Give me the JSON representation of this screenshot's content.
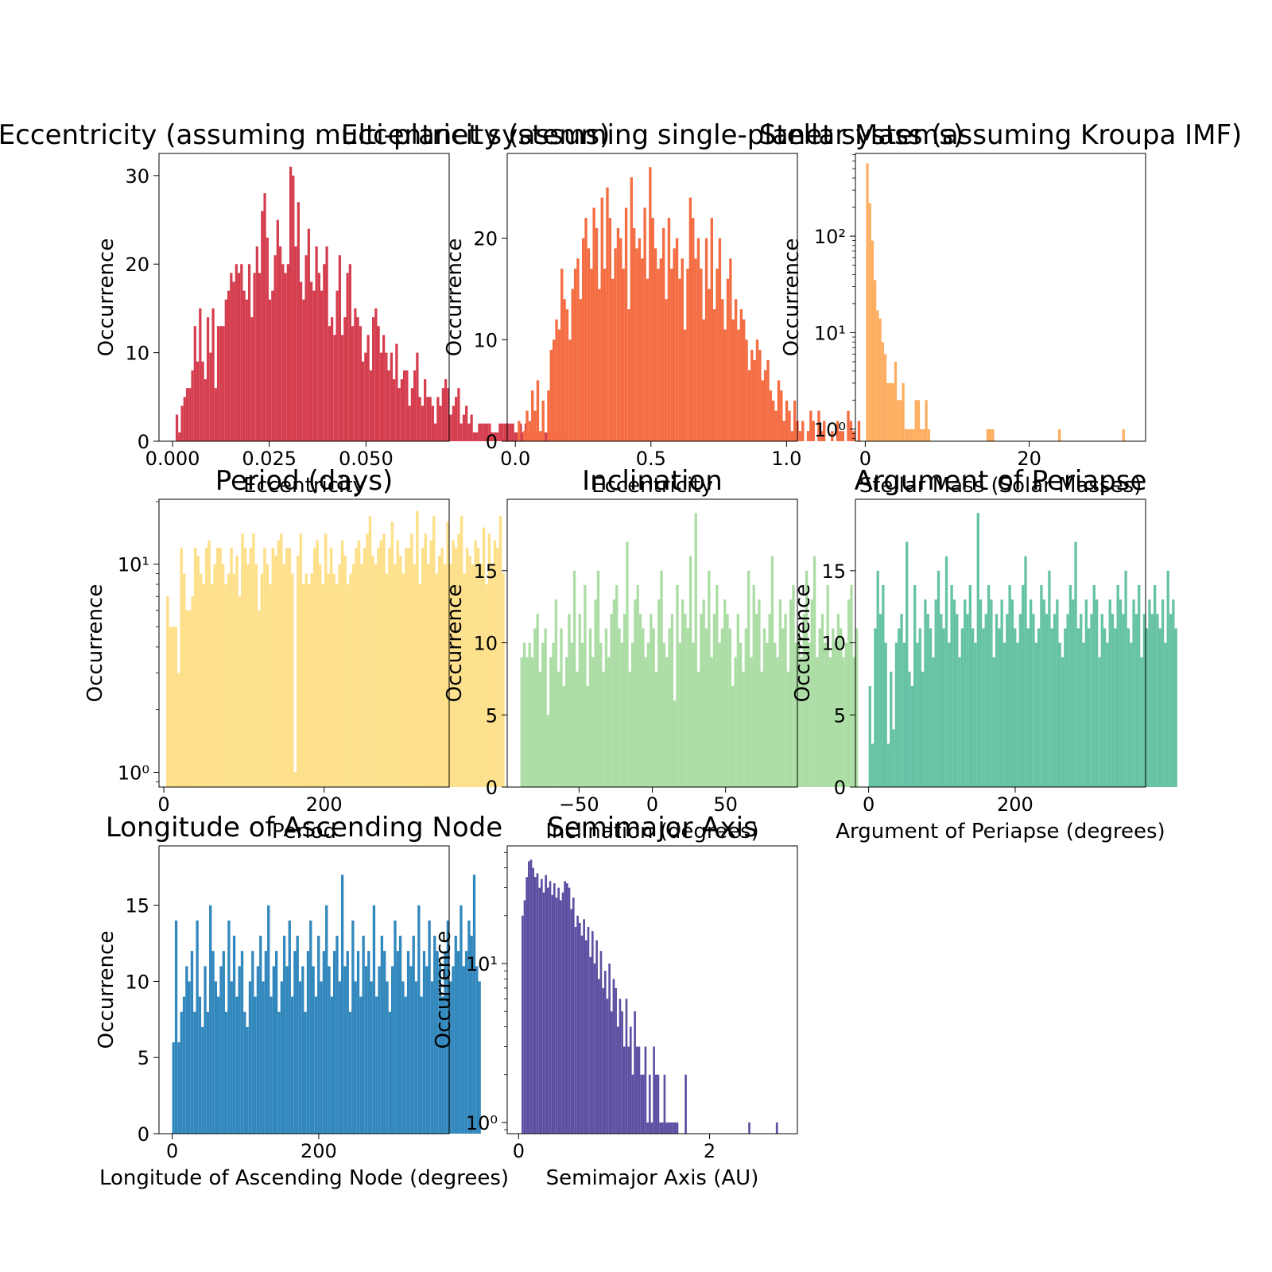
{
  "figure": {
    "background": "#ffffff"
  },
  "chart_data": [
    {
      "type": "bar",
      "title": "Eccentricity (assuming multi-planet systems)",
      "xlabel": "Eccentricity",
      "ylabel": "Occurrence",
      "color": "#d53e4f",
      "log_y": false,
      "xlim": [
        -0.0035,
        0.0715
      ],
      "ylim": [
        0,
        32.5
      ],
      "xticks": [
        0.0,
        0.025,
        0.05
      ],
      "xtick_labels": [
        "0.000",
        "0.025",
        "0.050"
      ],
      "yticks": [
        0,
        10,
        20,
        30
      ],
      "ytick_labels": [
        "0",
        "10",
        "20",
        "30"
      ],
      "bin_start": 0.0008,
      "bin_width": 0.000668,
      "values": [
        3,
        1,
        4,
        5,
        6,
        6,
        8,
        13,
        9,
        15,
        9,
        7,
        14,
        10,
        15,
        6,
        13,
        13,
        13,
        16,
        17,
        19,
        18,
        20,
        19,
        20,
        17,
        16,
        20,
        14,
        19,
        22,
        19,
        26,
        28,
        23,
        16,
        17,
        21,
        25,
        22,
        20,
        19,
        20,
        31,
        30,
        22,
        27,
        18,
        16,
        21,
        24,
        18,
        17,
        22,
        19,
        17,
        20,
        22,
        13,
        14,
        12,
        17,
        21,
        12,
        14,
        19,
        20,
        13,
        15,
        14,
        13,
        9,
        10,
        12,
        8,
        14,
        15,
        13,
        10,
        12,
        10,
        8,
        10,
        7,
        11,
        6,
        7,
        8,
        8,
        4,
        6,
        8,
        10,
        5,
        4,
        7,
        5,
        5,
        4,
        2,
        5,
        4,
        6,
        7,
        6,
        3,
        4,
        5,
        6,
        2,
        3,
        4,
        2,
        3,
        1,
        1,
        2,
        2,
        2,
        2,
        2,
        1,
        1,
        1,
        2,
        2,
        2,
        2,
        2,
        2,
        1,
        1,
        2,
        1,
        2,
        1,
        1,
        1,
        1,
        1,
        1,
        1,
        1,
        1,
        1,
        1,
        1,
        1,
        1,
        1
      ]
    },
    {
      "type": "bar",
      "title": "Eccentricity (assuming single-planet systems)",
      "xlabel": "Eccentricity",
      "ylabel": "Occurrence",
      "color": "#f46d43",
      "log_y": false,
      "xlim": [
        -0.03,
        1.04
      ],
      "ylim": [
        0,
        28.35
      ],
      "xticks": [
        0.0,
        0.5,
        1.0
      ],
      "xtick_labels": [
        "0.0",
        "0.5",
        "1.0"
      ],
      "yticks": [
        0,
        10,
        20
      ],
      "ytick_labels": [
        "0",
        "10",
        "20"
      ],
      "bin_start": 0.0087,
      "bin_width": 0.00987,
      "values": [
        2,
        0,
        1,
        3,
        2,
        5,
        3,
        6,
        1,
        4,
        0,
        5,
        9,
        10,
        12,
        11,
        17,
        14,
        13,
        10,
        15,
        17,
        18,
        14,
        20,
        22,
        19,
        17,
        23,
        21,
        15,
        24,
        17,
        25,
        22,
        16,
        19,
        21,
        20,
        17,
        23,
        13,
        26,
        21,
        19,
        20,
        18,
        23,
        16,
        27,
        22,
        19,
        17,
        18,
        21,
        14,
        22,
        17,
        19,
        20,
        16,
        18,
        11,
        17,
        24,
        22,
        18,
        20,
        17,
        12,
        20,
        15,
        22,
        13,
        17,
        20,
        14,
        11,
        16,
        18,
        12,
        14,
        11,
        13,
        12,
        10,
        7,
        9,
        8,
        10,
        9,
        6,
        7,
        8,
        5,
        4,
        3,
        6,
        5,
        2,
        4,
        3,
        1,
        4,
        2,
        1,
        2,
        0,
        1,
        3,
        2,
        0,
        3,
        1,
        2,
        0,
        0,
        1,
        0,
        2,
        1,
        1,
        0,
        3,
        2,
        1,
        0,
        2
      ]
    },
    {
      "type": "bar",
      "title": "Stellar Mass (assuming Kroupa IMF)",
      "xlabel": "Stellar Mass (Solar Masses)",
      "ylabel": "Occurrence",
      "color": "#fdae61",
      "log_y": true,
      "xlim": [
        -1.2,
        34.2
      ],
      "ylim": [
        0.75,
        720
      ],
      "xticks": [
        0,
        20
      ],
      "xtick_labels": [
        "0",
        "20"
      ],
      "yticks": [
        1,
        10,
        100
      ],
      "ytick_labels": [
        "10⁰",
        "10¹",
        "10²"
      ],
      "bin_start": 0.1,
      "bin_width": 0.3125,
      "values": [
        570,
        220,
        90,
        35,
        17,
        14,
        8,
        6,
        3,
        3,
        3,
        5,
        2,
        2,
        3,
        1,
        1,
        1,
        1,
        2,
        2,
        1,
        1,
        2,
        1,
        0,
        0,
        0,
        0,
        0,
        0,
        0,
        0,
        0,
        0,
        0,
        0,
        0,
        0,
        0,
        0,
        0,
        0,
        0,
        0,
        0,
        0,
        1,
        1,
        1,
        0,
        0,
        0,
        0,
        0,
        0,
        0,
        0,
        0,
        0,
        0,
        0,
        0,
        0,
        0,
        0,
        0,
        0,
        0,
        0,
        0,
        0,
        0,
        0,
        0,
        1,
        0,
        0,
        0,
        0,
        0,
        0,
        0,
        0,
        0,
        0,
        0,
        0,
        0,
        0,
        0,
        0,
        0,
        0,
        0,
        0,
        0,
        0,
        0,
        0,
        1
      ]
    },
    {
      "type": "bar",
      "title": "Period (days)",
      "xlabel": "Period",
      "ylabel": "Occurrence",
      "color": "#fee08b",
      "log_y": true,
      "xlim": [
        -6,
        356
      ],
      "ylim": [
        0.85,
        20.5
      ],
      "xticks": [
        0,
        200
      ],
      "xtick_labels": [
        "0",
        "200"
      ],
      "yticks": [
        1,
        10
      ],
      "ytick_labels": [
        "10⁰",
        "10¹"
      ],
      "bin_start": 3,
      "bin_width": 3.46,
      "values": [
        7,
        5,
        5,
        5,
        3,
        12,
        9,
        6,
        6,
        7,
        12,
        11,
        9,
        8,
        12,
        13,
        8,
        10,
        12,
        12,
        10,
        8,
        9,
        12,
        9,
        11,
        7,
        14,
        12,
        10,
        12,
        14,
        10,
        6,
        9,
        12,
        10,
        8,
        12,
        11,
        13,
        14,
        10,
        12,
        12,
        9,
        1,
        11,
        14,
        8,
        9,
        8,
        9,
        12,
        13,
        10,
        8,
        14,
        9,
        12,
        9,
        8,
        10,
        13,
        11,
        8,
        9,
        10,
        12,
        13,
        10,
        12,
        14,
        17,
        11,
        10,
        12,
        13,
        14,
        9,
        12,
        16,
        10,
        13,
        11,
        9,
        12,
        12,
        14,
        10,
        18,
        8,
        12,
        14,
        10,
        13,
        17,
        9,
        11,
        12,
        10,
        16,
        10,
        13,
        12,
        14,
        17,
        9,
        12,
        11,
        10,
        13,
        12,
        10,
        15,
        8,
        14,
        10,
        13,
        12,
        17,
        9
      ]
    },
    {
      "type": "bar",
      "title": "Inclination",
      "xlabel": "Inclination (degrees)",
      "ylabel": "Occurrence",
      "color": "#abdda4",
      "log_y": false,
      "xlim": [
        -99,
        99
      ],
      "ylim": [
        0,
        19.95
      ],
      "xticks": [
        -50,
        0,
        50
      ],
      "xtick_labels": [
        "−50",
        "0",
        "50"
      ],
      "yticks": [
        0,
        5,
        10,
        15
      ],
      "ytick_labels": [
        "0",
        "5",
        "10",
        "15"
      ],
      "bin_start": -90,
      "bin_width": 1.8,
      "values": [
        9,
        10,
        9,
        10,
        9,
        11,
        12,
        8,
        10,
        11,
        5,
        9,
        10,
        13,
        8,
        11,
        7,
        9,
        12,
        10,
        15,
        8,
        12,
        10,
        14,
        7,
        11,
        9,
        13,
        15,
        10,
        8,
        11,
        9,
        12,
        13,
        14,
        11,
        10,
        12,
        17,
        8,
        10,
        13,
        14,
        12,
        11,
        9,
        10,
        12,
        11,
        8,
        13,
        15,
        10,
        9,
        11,
        12,
        6,
        14,
        10,
        13,
        12,
        11,
        16,
        10,
        19,
        8,
        12,
        13,
        11,
        15,
        9,
        12,
        14,
        10,
        11,
        13,
        12,
        11,
        7,
        9,
        12,
        10,
        8,
        11,
        15,
        9,
        14,
        12,
        13,
        8,
        11,
        10,
        12,
        16,
        10,
        9,
        13,
        11,
        12,
        8,
        13,
        14,
        10,
        11,
        9,
        12,
        15,
        10,
        13,
        16,
        9,
        11,
        12,
        10,
        14,
        9,
        11,
        10,
        12,
        11,
        9,
        10,
        13,
        14,
        9,
        11
      ]
    },
    {
      "type": "bar",
      "title": "Argument of Periapse",
      "xlabel": "Argument of Periapse (degrees)",
      "ylabel": "Occurrence",
      "color": "#66c2a5",
      "log_y": false,
      "xlim": [
        -18,
        378
      ],
      "ylim": [
        0,
        19.95
      ],
      "xticks": [
        0,
        200
      ],
      "xtick_labels": [
        "0",
        "200"
      ],
      "yticks": [
        0,
        5,
        10,
        15
      ],
      "ytick_labels": [
        "0",
        "5",
        "10",
        "15"
      ],
      "bin_start": 0,
      "bin_width": 3.6,
      "values": [
        7,
        3,
        11,
        15,
        12,
        14,
        10,
        3,
        8,
        4,
        10,
        11,
        12,
        10,
        17,
        8,
        7,
        14,
        10,
        11,
        8,
        13,
        12,
        11,
        9,
        13,
        15,
        12,
        11,
        16,
        10,
        14,
        13,
        12,
        9,
        11,
        13,
        12,
        14,
        11,
        10,
        19,
        13,
        11,
        12,
        14,
        13,
        9,
        12,
        11,
        13,
        10,
        12,
        14,
        13,
        11,
        10,
        12,
        14,
        16,
        11,
        13,
        12,
        10,
        11,
        14,
        13,
        12,
        15,
        11,
        12,
        13,
        10,
        9,
        11,
        12,
        14,
        13,
        17,
        11,
        12,
        10,
        13,
        11,
        12,
        14,
        13,
        9,
        12,
        11,
        10,
        13,
        12,
        11,
        14,
        13,
        12,
        15,
        11,
        10,
        13,
        12,
        14,
        9,
        12,
        11,
        13,
        12,
        14,
        12,
        11,
        13,
        10,
        15,
        12,
        13,
        11
      ]
    },
    {
      "type": "bar",
      "title": "Longitude of Ascending Node",
      "xlabel": "Longitude of Ascending Node (degrees)",
      "ylabel": "Occurrence",
      "color": "#3288bd",
      "log_y": false,
      "xlim": [
        -18,
        378
      ],
      "ylim": [
        0,
        18.9
      ],
      "xticks": [
        0,
        200
      ],
      "xtick_labels": [
        "0",
        "200"
      ],
      "yticks": [
        0,
        5,
        10,
        15
      ],
      "ytick_labels": [
        "0",
        "5",
        "10",
        "15"
      ],
      "bin_start": 0,
      "bin_width": 3.6,
      "values": [
        6,
        14,
        6,
        8,
        9,
        11,
        10,
        12,
        8,
        14,
        9,
        7,
        11,
        8,
        15,
        12,
        10,
        9,
        11,
        12,
        8,
        14,
        10,
        13,
        9,
        11,
        12,
        8,
        7,
        10,
        12,
        9,
        11,
        13,
        10,
        12,
        15,
        9,
        11,
        12,
        8,
        10,
        13,
        11,
        14,
        9,
        12,
        13,
        10,
        11,
        8,
        12,
        14,
        11,
        9,
        13,
        10,
        12,
        15,
        11,
        9,
        12,
        13,
        10,
        17,
        11,
        12,
        8,
        14,
        10,
        12,
        9,
        13,
        11,
        12,
        10,
        15,
        9,
        11,
        13,
        12,
        10,
        8,
        11,
        14,
        12,
        13,
        10,
        9,
        12,
        11,
        13,
        10,
        15,
        9,
        12,
        11,
        14,
        10,
        13,
        12,
        11,
        9,
        12,
        14,
        10,
        11,
        13,
        12,
        15,
        11,
        12,
        14,
        13,
        17,
        11,
        10
      ]
    },
    {
      "type": "bar",
      "title": "Semimajor Axis",
      "xlabel": "Semimajor Axis (AU)",
      "ylabel": "Occurrence",
      "color": "#5e4fa2",
      "log_y": true,
      "xlim": [
        -0.12,
        2.92
      ],
      "ylim": [
        0.85,
        55
      ],
      "xticks": [
        0,
        2
      ],
      "xtick_labels": [
        "0",
        "2"
      ],
      "yticks": [
        1,
        10
      ],
      "ytick_labels": [
        "10⁰",
        "10¹"
      ],
      "bin_start": 0.03,
      "bin_width": 0.0222,
      "values": [
        20,
        25,
        35,
        44,
        45,
        40,
        35,
        37,
        30,
        34,
        28,
        36,
        30,
        33,
        27,
        32,
        26,
        30,
        25,
        28,
        33,
        32,
        30,
        22,
        26,
        17,
        20,
        18,
        15,
        19,
        14,
        17,
        11,
        16,
        10,
        14,
        8,
        12,
        7,
        9,
        6,
        10,
        5,
        8,
        7,
        4,
        6,
        5,
        3,
        6,
        3,
        4,
        2,
        5,
        3,
        3,
        2,
        2,
        3,
        1,
        2,
        1,
        3,
        2,
        2,
        1,
        1,
        2,
        1,
        1,
        1,
        1,
        1,
        1,
        0,
        0,
        0,
        2,
        0,
        0,
        0,
        0,
        0,
        0,
        0,
        0,
        0,
        0,
        0,
        0,
        0,
        0,
        0,
        0,
        0,
        0,
        0,
        0,
        0,
        0,
        0,
        0,
        0,
        0,
        0,
        0,
        0,
        1,
        0,
        0,
        0,
        0,
        0,
        0,
        0,
        0,
        0,
        0,
        0,
        0,
        1
      ]
    }
  ]
}
